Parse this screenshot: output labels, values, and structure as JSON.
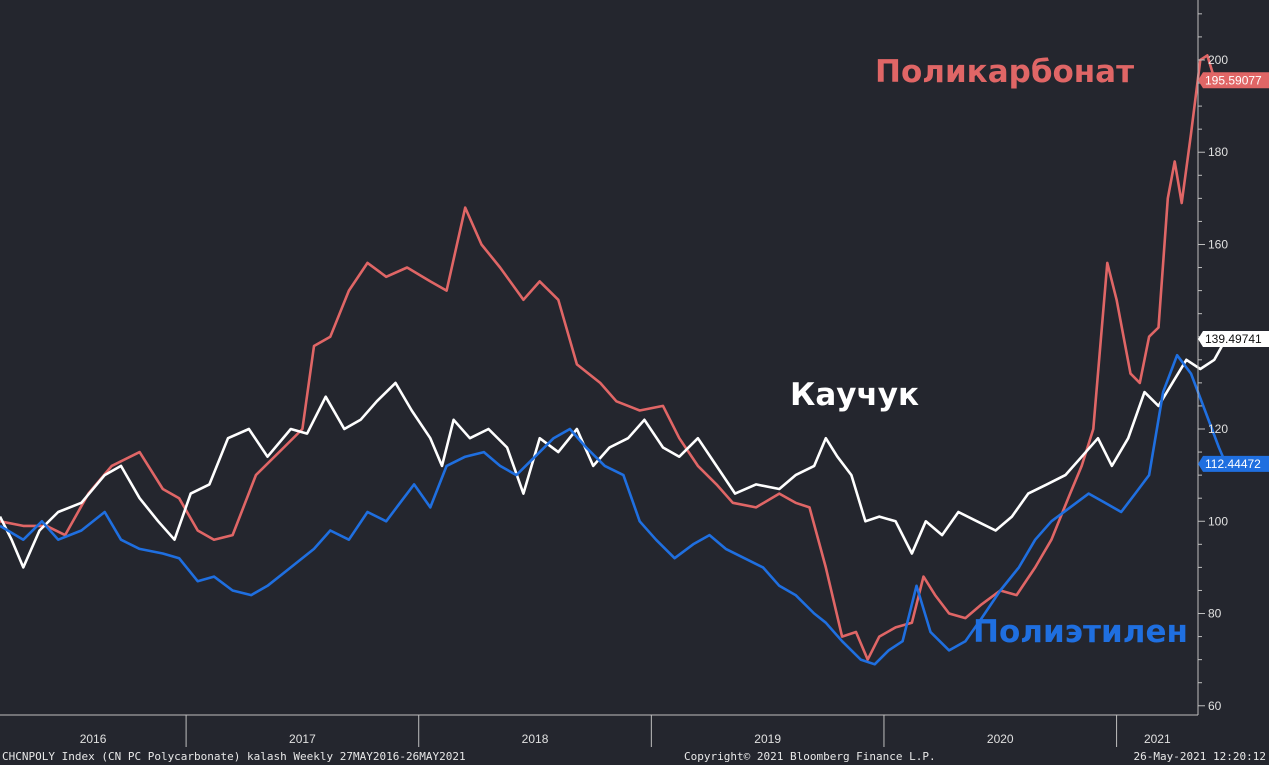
{
  "footer": {
    "left": "CHCNPOLY Index (CN PC Polycarbonate) kalash  Weekly 27MAY2016-26MAY2021",
    "center": "Copyright© 2021 Bloomberg Finance L.P.",
    "right": "26-May-2021 12:20:12"
  },
  "annotations": {
    "polycarbonate": "Поликарбонат",
    "rubber": "Каучук",
    "polyethylene": "Полиэтилен"
  },
  "colors": {
    "background": "#24262e",
    "polycarbonate": "#e06666",
    "rubber": "#ffffff",
    "polyethylene": "#1f6fe0",
    "axis": "#bfbfbf"
  },
  "chart_data": {
    "type": "line",
    "x_unit": "year",
    "xlim": [
      2016.2,
      2021.35
    ],
    "ylim": [
      58,
      213
    ],
    "yticks": [
      60,
      80,
      100,
      120,
      140,
      160,
      180,
      200
    ],
    "xtick_labels": [
      "2016",
      "2017",
      "2018",
      "2019",
      "2020",
      "2021"
    ],
    "year_boundaries": [
      2017,
      2018,
      2019,
      2020,
      2021
    ],
    "series": [
      {
        "key": "polycarbonate",
        "last_value_label": "195.59077",
        "points": [
          [
            2016.2,
            100
          ],
          [
            2016.3,
            99
          ],
          [
            2016.4,
            99
          ],
          [
            2016.48,
            97
          ],
          [
            2016.58,
            106
          ],
          [
            2016.68,
            112
          ],
          [
            2016.8,
            115
          ],
          [
            2016.9,
            107
          ],
          [
            2016.97,
            105
          ],
          [
            2017.05,
            98
          ],
          [
            2017.12,
            96
          ],
          [
            2017.2,
            97
          ],
          [
            2017.3,
            110
          ],
          [
            2017.42,
            116
          ],
          [
            2017.5,
            120
          ],
          [
            2017.55,
            138
          ],
          [
            2017.62,
            140
          ],
          [
            2017.7,
            150
          ],
          [
            2017.78,
            156
          ],
          [
            2017.86,
            153
          ],
          [
            2017.95,
            155
          ],
          [
            2018.05,
            152
          ],
          [
            2018.12,
            150
          ],
          [
            2018.2,
            168
          ],
          [
            2018.27,
            160
          ],
          [
            2018.35,
            155
          ],
          [
            2018.45,
            148
          ],
          [
            2018.52,
            152
          ],
          [
            2018.6,
            148
          ],
          [
            2018.68,
            134
          ],
          [
            2018.78,
            130
          ],
          [
            2018.85,
            126
          ],
          [
            2018.95,
            124
          ],
          [
            2019.05,
            125
          ],
          [
            2019.12,
            118
          ],
          [
            2019.2,
            112
          ],
          [
            2019.28,
            108
          ],
          [
            2019.35,
            104
          ],
          [
            2019.45,
            103
          ],
          [
            2019.55,
            106
          ],
          [
            2019.62,
            104
          ],
          [
            2019.68,
            103
          ],
          [
            2019.75,
            90
          ],
          [
            2019.82,
            75
          ],
          [
            2019.88,
            76
          ],
          [
            2019.93,
            70
          ],
          [
            2019.98,
            75
          ],
          [
            2020.05,
            77
          ],
          [
            2020.12,
            78
          ],
          [
            2020.17,
            88
          ],
          [
            2020.22,
            84
          ],
          [
            2020.28,
            80
          ],
          [
            2020.35,
            79
          ],
          [
            2020.42,
            82
          ],
          [
            2020.5,
            85
          ],
          [
            2020.57,
            84
          ],
          [
            2020.65,
            90
          ],
          [
            2020.72,
            96
          ],
          [
            2020.8,
            106
          ],
          [
            2020.85,
            112
          ],
          [
            2020.9,
            120
          ],
          [
            2020.96,
            156
          ],
          [
            2021.0,
            148
          ],
          [
            2021.06,
            132
          ],
          [
            2021.1,
            130
          ],
          [
            2021.14,
            140
          ],
          [
            2021.18,
            142
          ],
          [
            2021.22,
            170
          ],
          [
            2021.25,
            178
          ],
          [
            2021.28,
            169
          ],
          [
            2021.32,
            184
          ],
          [
            2021.36,
            200
          ],
          [
            2021.39,
            201
          ],
          [
            2021.42,
            196
          ],
          [
            2021.47,
            195.59
          ]
        ]
      },
      {
        "key": "rubber",
        "last_value_label": "139.49741",
        "points": [
          [
            2016.2,
            101
          ],
          [
            2016.25,
            96
          ],
          [
            2016.3,
            90
          ],
          [
            2016.37,
            98
          ],
          [
            2016.45,
            102
          ],
          [
            2016.55,
            104
          ],
          [
            2016.65,
            110
          ],
          [
            2016.72,
            112
          ],
          [
            2016.8,
            105
          ],
          [
            2016.88,
            100
          ],
          [
            2016.95,
            96
          ],
          [
            2017.02,
            106
          ],
          [
            2017.1,
            108
          ],
          [
            2017.18,
            118
          ],
          [
            2017.27,
            120
          ],
          [
            2017.35,
            114
          ],
          [
            2017.45,
            120
          ],
          [
            2017.52,
            119
          ],
          [
            2017.6,
            127
          ],
          [
            2017.68,
            120
          ],
          [
            2017.75,
            122
          ],
          [
            2017.82,
            126
          ],
          [
            2017.9,
            130
          ],
          [
            2017.97,
            124
          ],
          [
            2018.05,
            118
          ],
          [
            2018.1,
            112
          ],
          [
            2018.15,
            122
          ],
          [
            2018.22,
            118
          ],
          [
            2018.3,
            120
          ],
          [
            2018.38,
            116
          ],
          [
            2018.45,
            106
          ],
          [
            2018.52,
            118
          ],
          [
            2018.6,
            115
          ],
          [
            2018.68,
            120
          ],
          [
            2018.75,
            112
          ],
          [
            2018.82,
            116
          ],
          [
            2018.9,
            118
          ],
          [
            2018.97,
            122
          ],
          [
            2019.05,
            116
          ],
          [
            2019.12,
            114
          ],
          [
            2019.2,
            118
          ],
          [
            2019.28,
            112
          ],
          [
            2019.36,
            106
          ],
          [
            2019.45,
            108
          ],
          [
            2019.55,
            107
          ],
          [
            2019.62,
            110
          ],
          [
            2019.7,
            112
          ],
          [
            2019.75,
            118
          ],
          [
            2019.8,
            114
          ],
          [
            2019.86,
            110
          ],
          [
            2019.92,
            100
          ],
          [
            2019.98,
            101
          ],
          [
            2020.05,
            100
          ],
          [
            2020.12,
            93
          ],
          [
            2020.18,
            100
          ],
          [
            2020.25,
            97
          ],
          [
            2020.32,
            102
          ],
          [
            2020.4,
            100
          ],
          [
            2020.48,
            98
          ],
          [
            2020.55,
            101
          ],
          [
            2020.62,
            106
          ],
          [
            2020.7,
            108
          ],
          [
            2020.78,
            110
          ],
          [
            2020.85,
            114
          ],
          [
            2020.92,
            118
          ],
          [
            2020.98,
            112
          ],
          [
            2021.05,
            118
          ],
          [
            2021.12,
            128
          ],
          [
            2021.18,
            125
          ],
          [
            2021.24,
            130
          ],
          [
            2021.3,
            135
          ],
          [
            2021.36,
            133
          ],
          [
            2021.42,
            135
          ],
          [
            2021.47,
            139.5
          ]
        ]
      },
      {
        "key": "polyethylene",
        "last_value_label": "112.44472",
        "points": [
          [
            2016.2,
            99
          ],
          [
            2016.3,
            96
          ],
          [
            2016.38,
            100
          ],
          [
            2016.45,
            96
          ],
          [
            2016.55,
            98
          ],
          [
            2016.65,
            102
          ],
          [
            2016.72,
            96
          ],
          [
            2016.8,
            94
          ],
          [
            2016.9,
            93
          ],
          [
            2016.97,
            92
          ],
          [
            2017.05,
            87
          ],
          [
            2017.12,
            88
          ],
          [
            2017.2,
            85
          ],
          [
            2017.28,
            84
          ],
          [
            2017.35,
            86
          ],
          [
            2017.45,
            90
          ],
          [
            2017.55,
            94
          ],
          [
            2017.62,
            98
          ],
          [
            2017.7,
            96
          ],
          [
            2017.78,
            102
          ],
          [
            2017.86,
            100
          ],
          [
            2017.92,
            104
          ],
          [
            2017.98,
            108
          ],
          [
            2018.05,
            103
          ],
          [
            2018.12,
            112
          ],
          [
            2018.2,
            114
          ],
          [
            2018.28,
            115
          ],
          [
            2018.35,
            112
          ],
          [
            2018.42,
            110
          ],
          [
            2018.5,
            114
          ],
          [
            2018.58,
            118
          ],
          [
            2018.65,
            120
          ],
          [
            2018.72,
            116
          ],
          [
            2018.8,
            112
          ],
          [
            2018.88,
            110
          ],
          [
            2018.95,
            100
          ],
          [
            2019.02,
            96
          ],
          [
            2019.1,
            92
          ],
          [
            2019.18,
            95
          ],
          [
            2019.25,
            97
          ],
          [
            2019.32,
            94
          ],
          [
            2019.4,
            92
          ],
          [
            2019.48,
            90
          ],
          [
            2019.55,
            86
          ],
          [
            2019.62,
            84
          ],
          [
            2019.7,
            80
          ],
          [
            2019.75,
            78
          ],
          [
            2019.82,
            74
          ],
          [
            2019.9,
            70
          ],
          [
            2019.96,
            69
          ],
          [
            2020.02,
            72
          ],
          [
            2020.08,
            74
          ],
          [
            2020.14,
            86
          ],
          [
            2020.2,
            76
          ],
          [
            2020.28,
            72
          ],
          [
            2020.35,
            74
          ],
          [
            2020.42,
            79
          ],
          [
            2020.5,
            85
          ],
          [
            2020.58,
            90
          ],
          [
            2020.65,
            96
          ],
          [
            2020.72,
            100
          ],
          [
            2020.8,
            103
          ],
          [
            2020.88,
            106
          ],
          [
            2020.95,
            104
          ],
          [
            2021.02,
            102
          ],
          [
            2021.08,
            106
          ],
          [
            2021.14,
            110
          ],
          [
            2021.2,
            128
          ],
          [
            2021.26,
            136
          ],
          [
            2021.32,
            132
          ],
          [
            2021.38,
            124
          ],
          [
            2021.44,
            116
          ],
          [
            2021.47,
            112.44
          ]
        ]
      }
    ]
  }
}
